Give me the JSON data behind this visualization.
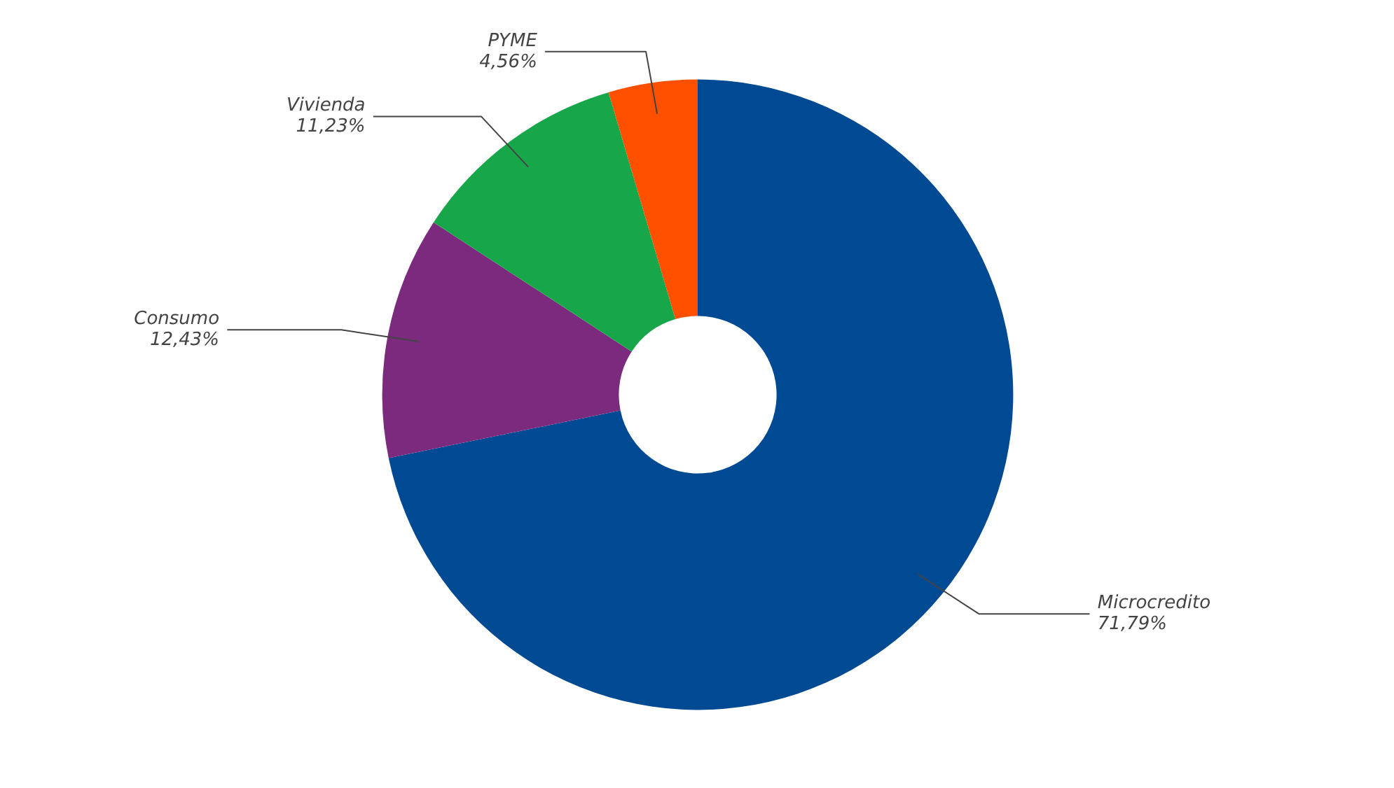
{
  "chart_data": {
    "type": "donut",
    "categories": [
      "Microcredito",
      "Consumo",
      "Vivienda",
      "PYME"
    ],
    "values": [
      71.79,
      12.43,
      11.23,
      4.56
    ],
    "colors": [
      "#004a93",
      "#7b2a7e",
      "#17a64a",
      "#ff5000"
    ],
    "value_labels": [
      "71,79%",
      "12,43%",
      "11,23%",
      "4,56%"
    ]
  }
}
